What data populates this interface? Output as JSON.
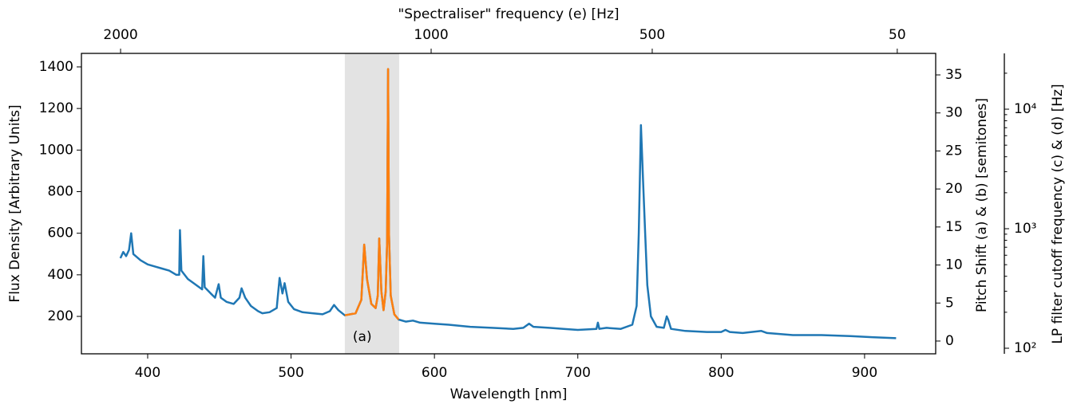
{
  "chart_data": {
    "type": "line",
    "top_axis_label": "\"Spectraliser\" frequency (e) [Hz]",
    "xlabel": "Wavelength [nm]",
    "ylabel": "Flux Density [Arbitrary Units]",
    "y2label": "Pitch Shift (a) & (b) [semitones]",
    "y3label": "LP filter cutoff frequency (c) & (d) [Hz]",
    "annotations": [
      "(a)"
    ],
    "span": [
      537.5,
      575.4
    ],
    "span_color": "#e3e3e3",
    "xlim": [
      353.8,
      949.6
    ],
    "xticks": [
      400,
      500,
      600,
      700,
      800,
      900
    ],
    "ylim": [
      20,
      1465
    ],
    "yticks": [
      200,
      400,
      600,
      800,
      1000,
      1200,
      1400
    ],
    "y2lim": [
      -1.68,
      37.83
    ],
    "y2ticks": [
      0,
      5,
      10,
      15,
      20,
      25,
      30,
      35
    ],
    "y3lim": [
      89.8,
      29300
    ],
    "y3scale": "log",
    "y3ticks": [
      {
        "value": 100,
        "label": "10²"
      },
      {
        "value": 1000,
        "label": "10³"
      },
      {
        "value": 10000,
        "label": "10⁴"
      }
    ],
    "y3minorticks": [
      200,
      300,
      400,
      500,
      600,
      700,
      800,
      900,
      2000,
      3000,
      4000,
      5000,
      6000,
      7000,
      8000,
      9000,
      20000
    ],
    "x2ticks": [
      {
        "value": 381.1,
        "label": "2000"
      },
      {
        "value": 597.7,
        "label": "1000"
      },
      {
        "value": 751.9,
        "label": "500"
      },
      {
        "value": 922.8,
        "label": "50"
      }
    ],
    "series": [
      {
        "color": "#1f77b4",
        "x": [
          381,
          383,
          385,
          387,
          388.5,
          390,
          395,
          400,
          405,
          410,
          415,
          420,
          422,
          422.5,
          423.5,
          428,
          432,
          436,
          438,
          438.8,
          439.8,
          444,
          447,
          449.5,
          451,
          455,
          460,
          464,
          465.5,
          468,
          472,
          477,
          480,
          485,
          490,
          492,
          494,
          495.5,
          498,
          502,
          508,
          515,
          522,
          527,
          530,
          533,
          537.5,
          545,
          549,
          551,
          553,
          556,
          559,
          560.5,
          561.5,
          563,
          564.5,
          566,
          567,
          567.7,
          568.3,
          569.5,
          572,
          575,
          580,
          585,
          590,
          600,
          610,
          625,
          640,
          655,
          662,
          666,
          669,
          680,
          690,
          700,
          713,
          714,
          715,
          720,
          730,
          738,
          741,
          742.5,
          744,
          745.5,
          747,
          748.5,
          751,
          755,
          760,
          762,
          763,
          765,
          775,
          790,
          800,
          803,
          806,
          815,
          828,
          832,
          850,
          870,
          890,
          905,
          922
        ],
        "values": [
          480,
          510,
          490,
          520,
          600,
          500,
          470,
          450,
          440,
          430,
          420,
          400,
          400,
          615,
          420,
          380,
          360,
          340,
          330,
          490,
          340,
          310,
          290,
          355,
          290,
          270,
          260,
          290,
          335,
          290,
          250,
          225,
          215,
          220,
          240,
          385,
          310,
          360,
          270,
          235,
          220,
          215,
          210,
          225,
          255,
          230,
          205,
          215,
          280,
          545,
          380,
          260,
          240,
          300,
          575,
          320,
          230,
          320,
          560,
          1390,
          600,
          300,
          210,
          185,
          175,
          180,
          170,
          165,
          160,
          150,
          145,
          140,
          145,
          165,
          150,
          145,
          140,
          135,
          140,
          170,
          140,
          145,
          140,
          160,
          250,
          600,
          1120,
          850,
          600,
          350,
          200,
          150,
          145,
          200,
          185,
          140,
          130,
          125,
          125,
          135,
          125,
          120,
          130,
          120,
          110,
          110,
          105,
          100,
          95
        ]
      },
      {
        "color": "#ff7f0e",
        "x": [
          537.5,
          545,
          549,
          551,
          553,
          556,
          559,
          560.5,
          561.5,
          563,
          564.5,
          566,
          567,
          567.7,
          568.3,
          569.5,
          572,
          575
        ],
        "values": [
          205,
          215,
          280,
          545,
          380,
          260,
          240,
          300,
          575,
          320,
          230,
          320,
          560,
          1390,
          600,
          300,
          210,
          185
        ]
      }
    ]
  }
}
